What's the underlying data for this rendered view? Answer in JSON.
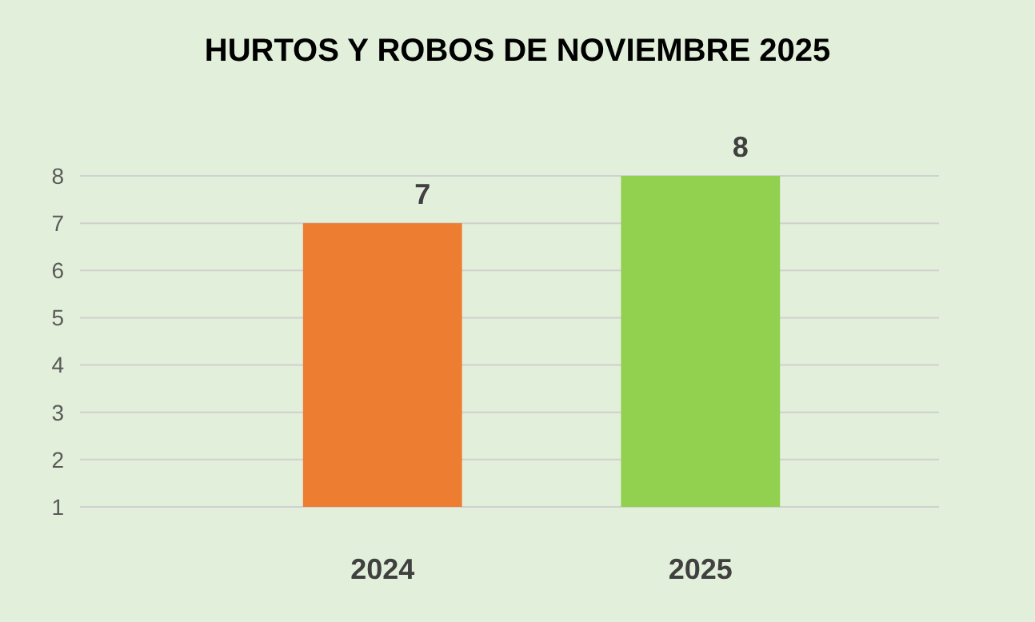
{
  "chart_data": {
    "type": "bar",
    "title": "HURTOS Y ROBOS DE NOVIEMBRE 2025",
    "categories": [
      "2024",
      "2025"
    ],
    "values": [
      7,
      8
    ],
    "colors": [
      "#ed7d31",
      "#92d050"
    ],
    "ylim": [
      1,
      8
    ],
    "yticks": [
      1,
      2,
      3,
      4,
      5,
      6,
      7,
      8
    ],
    "grid": "y",
    "data_labels": true
  }
}
